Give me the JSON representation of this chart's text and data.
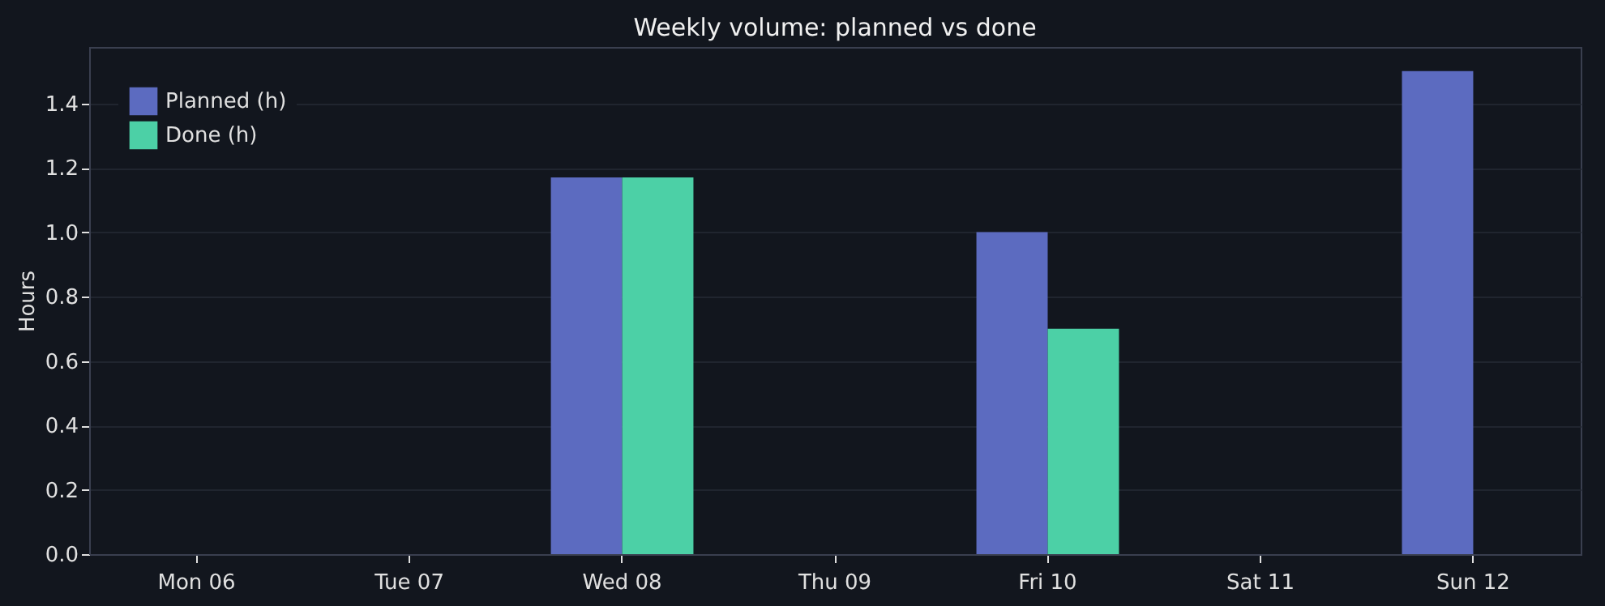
{
  "chart_data": {
    "type": "bar",
    "title": "Weekly volume: planned vs done",
    "ylabel": "Hours",
    "categories": [
      "Mon 06",
      "Tue 07",
      "Wed 08",
      "Thu 09",
      "Fri 10",
      "Sat 11",
      "Sun 12"
    ],
    "series": [
      {
        "name": "Planned (h)",
        "color": "#5c6bc0",
        "values": [
          0,
          0,
          1.17,
          0,
          1.0,
          0,
          1.5
        ]
      },
      {
        "name": "Done (h)",
        "color": "#4cd0a6",
        "values": [
          0,
          0,
          1.17,
          0,
          0.7,
          0,
          0
        ]
      }
    ],
    "ylim": [
      0,
      1.575
    ],
    "yticks": [
      {
        "value": 0,
        "label": "0.0"
      },
      0.2,
      0.4,
      0.6,
      0.8,
      {
        "value": 1,
        "label": "1.0"
      },
      1.2,
      1.4
    ],
    "grid": "y",
    "legend": "top left"
  }
}
